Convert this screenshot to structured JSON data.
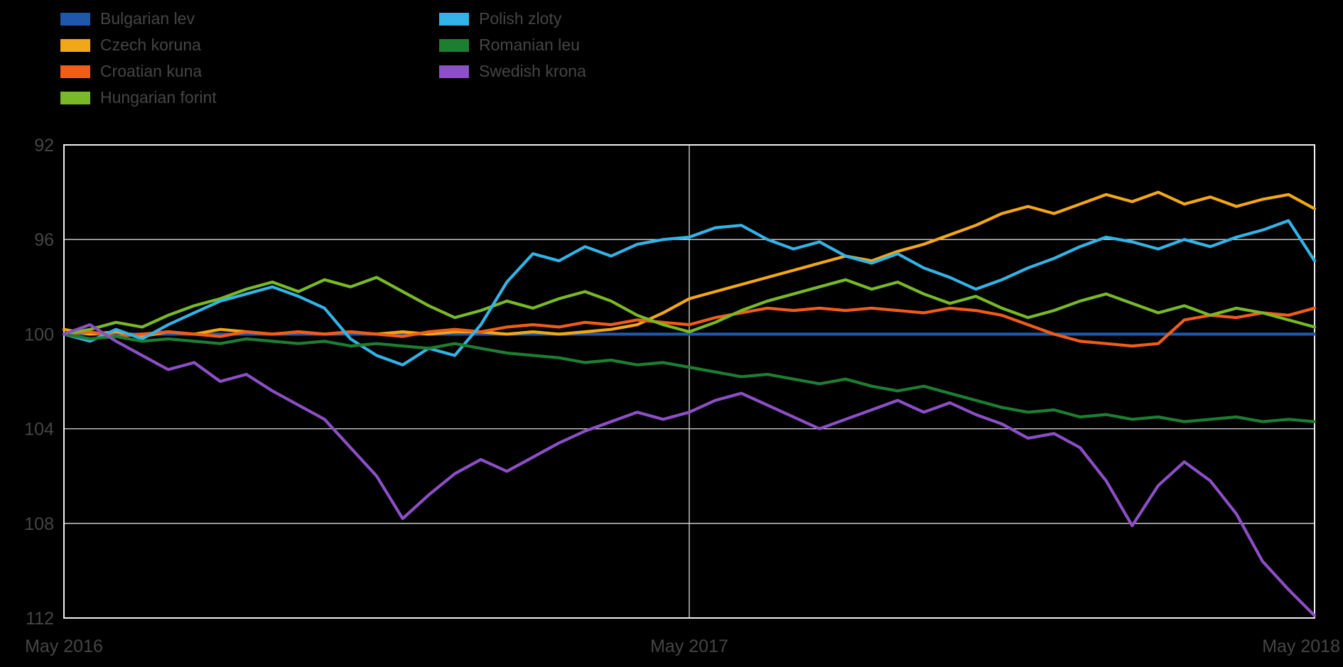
{
  "style": {
    "background": "#000000",
    "text_color": "#454545",
    "grid_color": "#d9d9d9",
    "border_color": "#f0f0f0"
  },
  "chart_data": {
    "type": "line",
    "title": "",
    "x_axis": {
      "unit": "months since May 2016",
      "range": [
        0,
        24
      ],
      "tick_labels": [
        {
          "pos": 0,
          "label": "May 2016"
        },
        {
          "pos": 12,
          "label": "May 2017"
        },
        {
          "pos": 24,
          "label": "May 2018"
        }
      ]
    },
    "y_axis": {
      "range": [
        92,
        112
      ],
      "inverted": true,
      "ticks": [
        92,
        96,
        100,
        104,
        108,
        112
      ]
    },
    "x": [
      0,
      0.5,
      1,
      1.5,
      2,
      2.5,
      3,
      3.5,
      4,
      4.5,
      5,
      5.5,
      6,
      6.5,
      7,
      7.5,
      8,
      8.5,
      9,
      9.5,
      10,
      10.5,
      11,
      11.5,
      12,
      12.5,
      13,
      13.5,
      14,
      14.5,
      15,
      15.5,
      16,
      16.5,
      17,
      17.5,
      18,
      18.5,
      19,
      19.5,
      20,
      20.5,
      21,
      21.5,
      22,
      22.5,
      23,
      23.5,
      24
    ],
    "series": [
      {
        "name": "Bulgarian lev",
        "color": "#1f57ad",
        "values": [
          100,
          100,
          100,
          100,
          100,
          100,
          100,
          100,
          100,
          100,
          100,
          100,
          100,
          100,
          100,
          100,
          100,
          100,
          100,
          100,
          100,
          100,
          100,
          100,
          100,
          100,
          100,
          100,
          100,
          100,
          100,
          100,
          100,
          100,
          100,
          100,
          100,
          100,
          100,
          100,
          100,
          100,
          100,
          100,
          100,
          100,
          100,
          100,
          100
        ]
      },
      {
        "name": "Czech koruna",
        "color": "#f2a716",
        "values": [
          99.8,
          100.0,
          99.9,
          100.1,
          99.9,
          100.0,
          99.8,
          99.9,
          100.0,
          99.9,
          100.0,
          99.9,
          100.0,
          99.9,
          100.0,
          99.9,
          99.9,
          100.0,
          99.9,
          100.0,
          99.9,
          99.8,
          99.6,
          99.1,
          98.5,
          98.2,
          97.9,
          97.6,
          97.3,
          97.0,
          96.7,
          96.9,
          96.5,
          96.2,
          95.8,
          95.4,
          94.9,
          94.6,
          94.9,
          94.5,
          94.1,
          94.4,
          94.0,
          94.5,
          94.2,
          94.6,
          94.3,
          94.1,
          94.7
        ]
      },
      {
        "name": "Croatian kuna",
        "color": "#f25c19",
        "values": [
          100.0,
          99.9,
          100.1,
          100.0,
          99.9,
          100.0,
          100.1,
          99.9,
          100.0,
          99.9,
          100.0,
          99.9,
          100.0,
          100.1,
          99.9,
          99.8,
          99.9,
          99.7,
          99.6,
          99.7,
          99.5,
          99.6,
          99.4,
          99.5,
          99.6,
          99.3,
          99.1,
          98.9,
          99.0,
          98.9,
          99.0,
          98.9,
          99.0,
          99.1,
          98.9,
          99.0,
          99.2,
          99.6,
          100.0,
          100.3,
          100.4,
          100.5,
          100.4,
          99.4,
          99.2,
          99.3,
          99.1,
          99.2,
          98.9
        ]
      },
      {
        "name": "Hungarian forint",
        "color": "#79b928",
        "values": [
          100.0,
          99.8,
          99.5,
          99.7,
          99.2,
          98.8,
          98.5,
          98.1,
          97.8,
          98.2,
          97.7,
          98.0,
          97.6,
          98.2,
          98.8,
          99.3,
          99.0,
          98.6,
          98.9,
          98.5,
          98.2,
          98.6,
          99.2,
          99.6,
          99.9,
          99.5,
          99.0,
          98.6,
          98.3,
          98.0,
          97.7,
          98.1,
          97.8,
          98.3,
          98.7,
          98.4,
          98.9,
          99.3,
          99.0,
          98.6,
          98.3,
          98.7,
          99.1,
          98.8,
          99.2,
          98.9,
          99.1,
          99.4,
          99.7
        ]
      },
      {
        "name": "Polish zloty",
        "color": "#33b3e7",
        "values": [
          100.0,
          100.3,
          99.8,
          100.2,
          99.6,
          99.1,
          98.6,
          98.3,
          98.0,
          98.4,
          98.9,
          100.2,
          100.9,
          101.3,
          100.6,
          100.9,
          99.6,
          97.8,
          96.6,
          96.9,
          96.3,
          96.7,
          96.2,
          96.0,
          95.9,
          95.5,
          95.4,
          96.0,
          96.4,
          96.1,
          96.7,
          97.0,
          96.6,
          97.2,
          97.6,
          98.1,
          97.7,
          97.2,
          96.8,
          96.3,
          95.9,
          96.1,
          96.4,
          96.0,
          96.3,
          95.9,
          95.6,
          95.2,
          96.9
        ]
      },
      {
        "name": "Romanian leu",
        "color": "#1d7e32",
        "values": [
          100.0,
          100.2,
          100.1,
          100.3,
          100.2,
          100.3,
          100.4,
          100.2,
          100.3,
          100.4,
          100.3,
          100.5,
          100.4,
          100.5,
          100.6,
          100.4,
          100.6,
          100.8,
          100.9,
          101.0,
          101.2,
          101.1,
          101.3,
          101.2,
          101.4,
          101.6,
          101.8,
          101.7,
          101.9,
          102.1,
          101.9,
          102.2,
          102.4,
          102.2,
          102.5,
          102.8,
          103.1,
          103.3,
          103.2,
          103.5,
          103.4,
          103.6,
          103.5,
          103.7,
          103.6,
          103.5,
          103.7,
          103.6,
          103.7
        ]
      },
      {
        "name": "Swedish krona",
        "color": "#8c4fc6",
        "values": [
          100.0,
          99.6,
          100.3,
          100.9,
          101.5,
          101.2,
          102.0,
          101.7,
          102.4,
          103.0,
          103.6,
          104.8,
          106.0,
          107.8,
          106.8,
          105.9,
          105.3,
          105.8,
          105.2,
          104.6,
          104.1,
          103.7,
          103.3,
          103.6,
          103.3,
          102.8,
          102.5,
          103.0,
          103.5,
          104.0,
          103.6,
          103.2,
          102.8,
          103.3,
          102.9,
          103.4,
          103.8,
          104.4,
          104.2,
          104.8,
          106.2,
          108.1,
          106.4,
          105.4,
          106.2,
          107.6,
          109.6,
          110.8,
          111.9
        ]
      }
    ],
    "legend_columns": [
      [
        "Bulgarian lev",
        "Czech koruna",
        "Croatian kuna",
        "Hungarian forint"
      ],
      [
        "Polish zloty",
        "Romanian leu",
        "Swedish krona"
      ]
    ]
  }
}
